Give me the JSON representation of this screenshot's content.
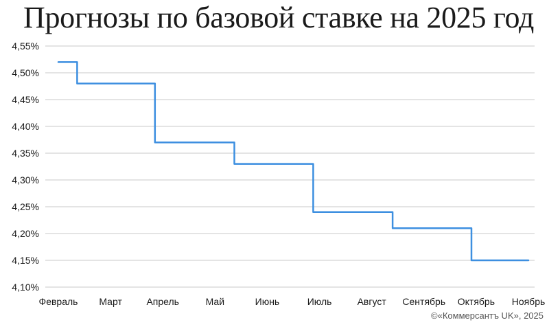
{
  "title": "Прогнозы по базовой ставке на 2025 год",
  "credit": "©«Коммерсантъ UK», 2025",
  "colors": {
    "line": "#3d8fe0",
    "grid": "#c8c8c8",
    "text": "#1a1a1a"
  },
  "chart_data": {
    "type": "line",
    "title": "Прогнозы по базовой ставке на 2025 год",
    "xlabel": "",
    "ylabel": "",
    "categories": [
      "Февраль",
      "Март",
      "Апрель",
      "Май",
      "Июнь",
      "Июль",
      "Август",
      "Сентябрь",
      "Октябрь",
      "Ноябрь"
    ],
    "ylim": [
      4.1,
      4.55
    ],
    "y_ticks": [
      4.1,
      4.15,
      4.2,
      4.25,
      4.3,
      4.35,
      4.4,
      4.45,
      4.5,
      4.55
    ],
    "y_tick_labels": [
      "4,10%",
      "4,15%",
      "4,20%",
      "4,25%",
      "4,30%",
      "4,35%",
      "4,40%",
      "4,45%",
      "4,50%",
      "4,55%"
    ],
    "step": true,
    "series": [
      {
        "x": [
          0.0,
          0.36,
          0.36,
          1.85,
          1.85,
          3.37,
          3.37,
          4.88,
          4.88,
          6.4,
          6.4,
          7.91,
          7.91,
          9.0
        ],
        "values": [
          4.52,
          4.52,
          4.48,
          4.48,
          4.37,
          4.37,
          4.33,
          4.33,
          4.24,
          4.24,
          4.21,
          4.21,
          4.15,
          4.15
        ]
      }
    ],
    "grid": "horizontal",
    "legend": "none"
  }
}
